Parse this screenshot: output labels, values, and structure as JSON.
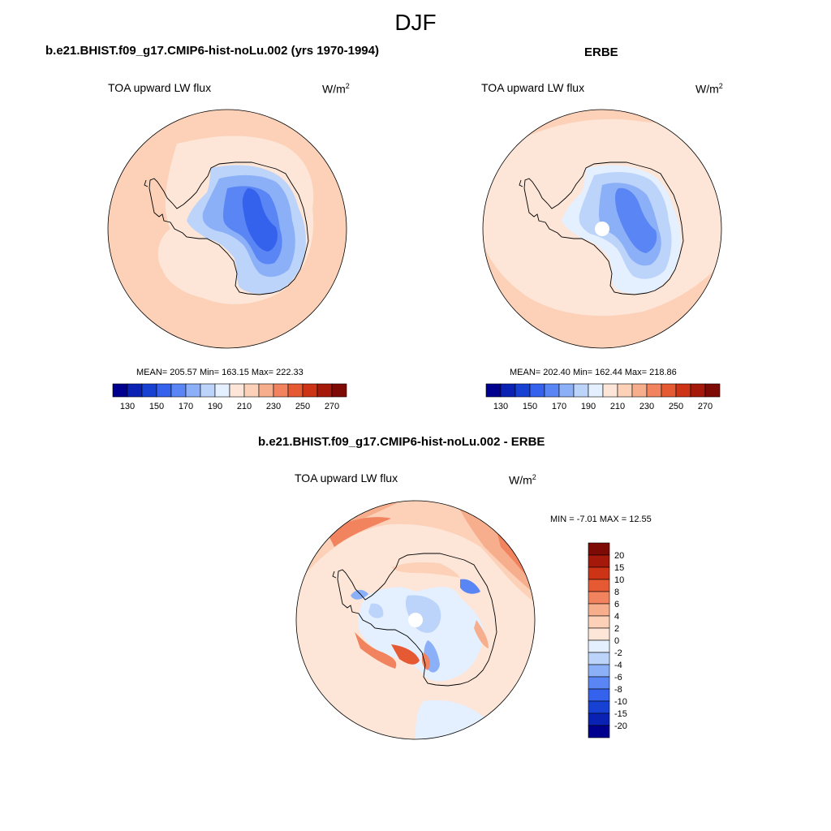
{
  "title": "DJF",
  "left_panel": {
    "title": "b.e21.BHIST.f09_g17.CMIP6-hist-noLu.002 (yrs 1970-1994)",
    "variable": "TOA upward LW flux",
    "units_base": "W/m",
    "units_exp": "2",
    "stats": "MEAN= 205.57  Min= 163.15  Max= 222.33"
  },
  "right_panel": {
    "title": "ERBE",
    "variable": "TOA upward LW flux",
    "units_base": "W/m",
    "units_exp": "2",
    "stats": "MEAN= 202.40  Min= 162.44  Max= 218.86"
  },
  "diff_panel": {
    "title": "b.e21.BHIST.f09_g17.CMIP6-hist-noLu.002 - ERBE",
    "variable": "TOA upward LW flux",
    "units_base": "W/m",
    "units_exp": "2",
    "stats": "MIN =  -7.01 MAX =  12.55"
  },
  "abs_colorbar": {
    "colors": [
      "#00008f",
      "#0a22b4",
      "#1741d2",
      "#3462ec",
      "#5a86f5",
      "#8bb0f8",
      "#bcd3fa",
      "#e4efff",
      "#fde6d8",
      "#fcd1b8",
      "#f7ae8c",
      "#f1835e",
      "#e65a33",
      "#cc3415",
      "#a4190a",
      "#7e0a05"
    ],
    "tick_labels": [
      "130",
      "150",
      "170",
      "190",
      "210",
      "230",
      "250",
      "270"
    ]
  },
  "diff_colorbar": {
    "colors": [
      "#00008f",
      "#0a22b4",
      "#1741d2",
      "#3462ec",
      "#5a86f5",
      "#8bb0f8",
      "#bcd3fa",
      "#e4efff",
      "#fde6d8",
      "#fcd1b8",
      "#f7ae8c",
      "#f1835e",
      "#e65a33",
      "#cc3415",
      "#a4190a",
      "#7e0a05"
    ],
    "tick_labels": [
      "20",
      "15",
      "10",
      "8",
      "6",
      "4",
      "2",
      "0",
      "-2",
      "-4",
      "-6",
      "-8",
      "-10",
      "-15",
      "-20"
    ]
  }
}
